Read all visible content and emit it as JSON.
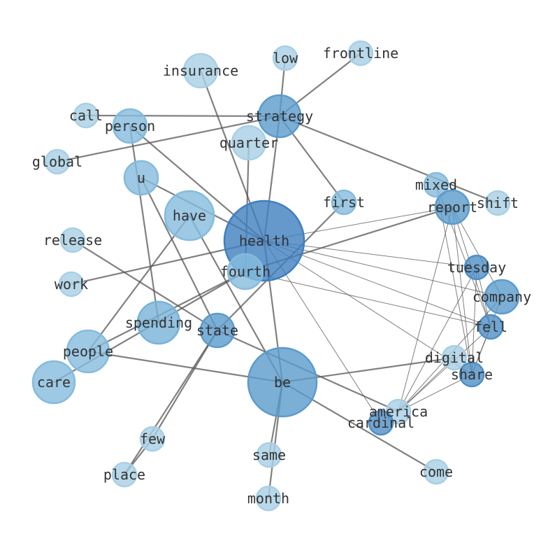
{
  "nodes": [
    {
      "id": "health",
      "label": "health",
      "color": "#3f7fbf"
    },
    {
      "id": "be",
      "label": "be",
      "color": "#5b9bcc"
    },
    {
      "id": "strategy",
      "label": "strategy",
      "color": "#5b9bcc"
    },
    {
      "id": "have",
      "label": "have",
      "color": "#85bbdd"
    },
    {
      "id": "fourth",
      "label": "fourth",
      "color": "#85bbdd"
    },
    {
      "id": "spending",
      "label": "spending",
      "color": "#78b2d8"
    },
    {
      "id": "state",
      "label": "state",
      "color": "#5b9bcc"
    },
    {
      "id": "people",
      "label": "people",
      "color": "#85bbdd"
    },
    {
      "id": "care",
      "label": "care",
      "color": "#85bbdd"
    },
    {
      "id": "person",
      "label": "person",
      "color": "#85bbdd"
    },
    {
      "id": "u",
      "label": "u",
      "color": "#85bbdd"
    },
    {
      "id": "quarter",
      "label": "quarter",
      "color": "#a8cfe5"
    },
    {
      "id": "insurance",
      "label": "insurance",
      "color": "#a8cfe5"
    },
    {
      "id": "low",
      "label": "low",
      "color": "#a8cfe5"
    },
    {
      "id": "frontline",
      "label": "frontline",
      "color": "#a8cfe5"
    },
    {
      "id": "call",
      "label": "call",
      "color": "#a8cfe5"
    },
    {
      "id": "global",
      "label": "global",
      "color": "#a8cfe5"
    },
    {
      "id": "release",
      "label": "release",
      "color": "#a8cfe5"
    },
    {
      "id": "work",
      "label": "work",
      "color": "#a8cfe5"
    },
    {
      "id": "first",
      "label": "first",
      "color": "#85bbdd"
    },
    {
      "id": "mixed",
      "label": "mixed",
      "color": "#85bbdd"
    },
    {
      "id": "report",
      "label": "report",
      "color": "#5b9bcc"
    },
    {
      "id": "shift",
      "label": "shift",
      "color": "#a8cfe5"
    },
    {
      "id": "tuesday",
      "label": "tuesday",
      "color": "#4f8fc5"
    },
    {
      "id": "company",
      "label": "company",
      "color": "#5b9bcc"
    },
    {
      "id": "fell",
      "label": "fell",
      "color": "#4f8fc5"
    },
    {
      "id": "digital",
      "label": "digital",
      "color": "#a8cfe5"
    },
    {
      "id": "share",
      "label": "share",
      "color": "#4f8fc5"
    },
    {
      "id": "america",
      "label": "america",
      "color": "#a8cfe5"
    },
    {
      "id": "cardinal",
      "label": "cardinal",
      "color": "#4f8fc5"
    },
    {
      "id": "few",
      "label": "few",
      "color": "#a8cfe5"
    },
    {
      "id": "place",
      "label": "place",
      "color": "#a8cfe5"
    },
    {
      "id": "same",
      "label": "same",
      "color": "#a8cfe5"
    },
    {
      "id": "month",
      "label": "month",
      "color": "#a8cfe5"
    },
    {
      "id": "come",
      "label": "come",
      "color": "#a8cfe5"
    }
  ],
  "edges_strong": [
    [
      "call",
      "strategy"
    ],
    [
      "global",
      "strategy"
    ],
    [
      "strategy",
      "low"
    ],
    [
      "strategy",
      "frontline"
    ],
    [
      "strategy",
      "first"
    ],
    [
      "strategy",
      "shift"
    ],
    [
      "strategy",
      "health"
    ],
    [
      "insurance",
      "health"
    ],
    [
      "person",
      "health"
    ],
    [
      "person",
      "spending"
    ],
    [
      "u",
      "health"
    ],
    [
      "u",
      "state"
    ],
    [
      "quarter",
      "fourth"
    ],
    [
      "have",
      "people"
    ],
    [
      "have",
      "be"
    ],
    [
      "release",
      "state"
    ],
    [
      "state",
      "america"
    ],
    [
      "work",
      "health"
    ],
    [
      "care",
      "fourth"
    ],
    [
      "people",
      "fourth"
    ],
    [
      "fourth",
      "report"
    ],
    [
      "first",
      "state"
    ],
    [
      "state",
      "few"
    ],
    [
      "state",
      "place"
    ],
    [
      "few",
      "place"
    ],
    [
      "people",
      "be"
    ],
    [
      "be",
      "digital"
    ],
    [
      "be",
      "come"
    ],
    [
      "health",
      "be"
    ],
    [
      "be",
      "same"
    ],
    [
      "be",
      "month"
    ]
  ],
  "edges_weak": [
    [
      "health",
      "report"
    ],
    [
      "health",
      "tuesday"
    ],
    [
      "health",
      "company"
    ],
    [
      "health",
      "fell"
    ],
    [
      "fourth",
      "fell"
    ],
    [
      "health",
      "share"
    ],
    [
      "health",
      "cardinal"
    ],
    [
      "report",
      "share"
    ],
    [
      "report",
      "fell"
    ],
    [
      "report",
      "company"
    ],
    [
      "report",
      "america"
    ],
    [
      "mixed",
      "share"
    ],
    [
      "mixed",
      "fell"
    ],
    [
      "tuesday",
      "america"
    ],
    [
      "tuesday",
      "share"
    ],
    [
      "tuesday",
      "fell"
    ],
    [
      "company",
      "america"
    ],
    [
      "fell",
      "america"
    ],
    [
      "share",
      "america"
    ],
    [
      "digital",
      "america"
    ],
    [
      "company",
      "share"
    ],
    [
      "fell",
      "share"
    ]
  ]
}
